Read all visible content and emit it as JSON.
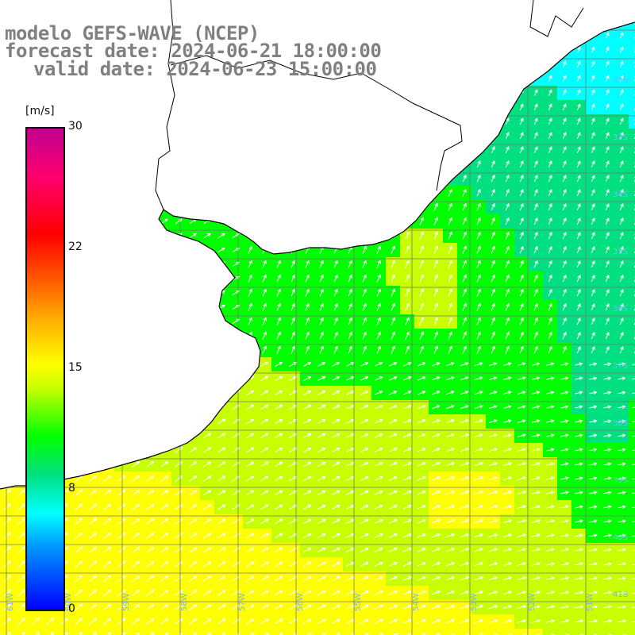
{
  "title": {
    "line1": "modelo GEFS-WAVE (NCEP)",
    "line2": "forecast date: 2024-06-21 18:00:00",
    "line3": "valid date: 2024-06-23 15:00:00"
  },
  "colorbar": {
    "unit": "[m/s]",
    "ticks": [
      "30",
      "22",
      "15",
      "8",
      "0"
    ],
    "tick_values": [
      30,
      22,
      15,
      8,
      0
    ],
    "range": [
      0,
      30
    ],
    "colors": [
      "#0000ff",
      "#0096ff",
      "#00ffff",
      "#00e080",
      "#00ff00",
      "#c8ff00",
      "#ffff00",
      "#ffb000",
      "#ff5500",
      "#ff0000",
      "#ff0070",
      "#c00090"
    ]
  },
  "map": {
    "variable": "wind speed with direction arrows",
    "region": "Uruguay / Rio de la Plata / SW Atlantic",
    "lat_labels": [
      "32S",
      "33S",
      "34S",
      "35S",
      "36S",
      "37S",
      "38S",
      "39S",
      "40S",
      "41S"
    ],
    "lon_labels": [
      "61W",
      "60W",
      "59W",
      "58W",
      "57W",
      "56W",
      "55W",
      "54W",
      "53W",
      "52W",
      "51W"
    ],
    "grid": true,
    "land_color": "#ffffff",
    "coast_color": "#000000",
    "arrow_color": "#ffffff",
    "dominant_wind_direction": "from southwest to northeast"
  }
}
